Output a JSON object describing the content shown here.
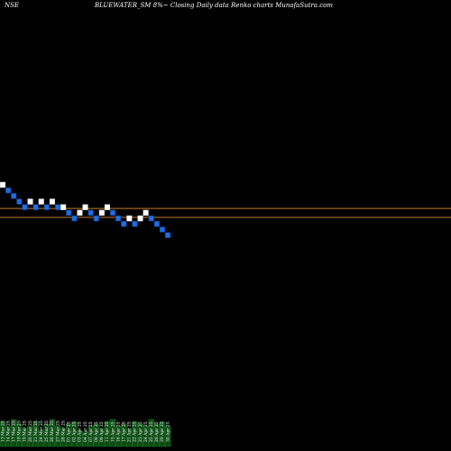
{
  "header": {
    "exchange": "NSE",
    "title": "BLUEWATER_SM 8%~ Closing Daily data Renko charts MunafaSutra.com",
    "watermark": ""
  },
  "colors": {
    "background": "#000000",
    "up_brick": "#ffffff",
    "down_brick": "#1e6fe0",
    "down_brick_edge": "#0b3d91",
    "reference_line": "#c8782a",
    "volume": "#0c4a14",
    "volume_edge": "#1f8a2a",
    "label_text": "#ffffff"
  },
  "chart_data": {
    "type": "renko",
    "title": "BLUEWATER_SM 8%~ Closing Daily data Renko charts MunafaSutra.com",
    "brick_size_label": "8%",
    "bricks": [
      {
        "dir": "up",
        "level": 10
      },
      {
        "dir": "down",
        "level": 9
      },
      {
        "dir": "down",
        "level": 8
      },
      {
        "dir": "down",
        "level": 7
      },
      {
        "dir": "down",
        "level": 6
      },
      {
        "dir": "up",
        "level": 7
      },
      {
        "dir": "down",
        "level": 6
      },
      {
        "dir": "up",
        "level": 7
      },
      {
        "dir": "down",
        "level": 6
      },
      {
        "dir": "up",
        "level": 7
      },
      {
        "dir": "down",
        "level": 6
      },
      {
        "dir": "up",
        "level": 6
      },
      {
        "dir": "down",
        "level": 5
      },
      {
        "dir": "down",
        "level": 4
      },
      {
        "dir": "up",
        "level": 5
      },
      {
        "dir": "up",
        "level": 6
      },
      {
        "dir": "down",
        "level": 5
      },
      {
        "dir": "down",
        "level": 4
      },
      {
        "dir": "up",
        "level": 5
      },
      {
        "dir": "up",
        "level": 6
      },
      {
        "dir": "down",
        "level": 5
      },
      {
        "dir": "down",
        "level": 4
      },
      {
        "dir": "down",
        "level": 3
      },
      {
        "dir": "up",
        "level": 4
      },
      {
        "dir": "down",
        "level": 3
      },
      {
        "dir": "up",
        "level": 4
      },
      {
        "dir": "up",
        "level": 5
      },
      {
        "dir": "down",
        "level": 4
      },
      {
        "dir": "down",
        "level": 3
      },
      {
        "dir": "down",
        "level": 2
      },
      {
        "dir": "down",
        "level": 1
      }
    ],
    "reference_lines": [
      {
        "level": 5.3
      },
      {
        "level": 3.7
      }
    ],
    "volume": [
      0.55,
      0.45,
      0.6,
      0.5,
      0.4,
      0.45,
      0.55,
      0.35,
      0.5,
      0.6,
      0.45,
      0.4,
      0.5,
      0.55,
      0.35,
      0.3,
      0.45,
      0.5,
      0.4,
      0.55,
      0.6,
      0.45,
      0.5,
      0.4,
      0.55,
      0.5,
      0.45,
      0.6,
      0.5,
      0.55,
      0.45
    ],
    "x_tick_labels": [
      "13 Mar 25",
      "14 Mar 25",
      "17 Mar 25",
      "18 Mar 25",
      "19 Mar 25",
      "20 Mar 25",
      "21 Mar 25",
      "24 Mar 25",
      "25 Mar 25",
      "26 Mar 25",
      "27 Mar 25",
      "28 Mar 25",
      "01 Apr 25",
      "02 Apr 25",
      "03 Apr 25",
      "04 Apr 25",
      "07 Apr 25",
      "08 Apr 25",
      "09 Apr 25",
      "11 Apr 25",
      "15 Apr 25",
      "16 Apr 25",
      "17 Apr 25",
      "21 Apr 25",
      "22 Apr 25",
      "23 Apr 25",
      "24 Apr 25",
      "25 Apr 25",
      "28 Apr 25",
      "29 Apr 25",
      "30 Apr 25"
    ]
  }
}
